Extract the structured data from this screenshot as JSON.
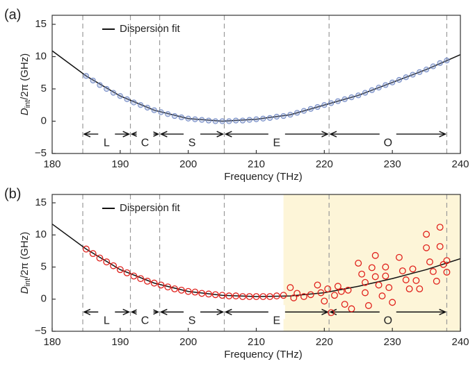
{
  "chart_data": [
    {
      "type": "scatter",
      "panel_label": "(a)",
      "x_label": "Frequency (THz)",
      "y_label": {
        "main": "D",
        "sub": "int",
        "rest": "/2π (GHz)"
      },
      "xlim": [
        180,
        240
      ],
      "xticks": [
        180,
        190,
        200,
        210,
        220,
        230,
        240
      ],
      "ylim": [
        -5,
        16.4
      ],
      "yticks": [
        {
          "value": -5,
          "label": "−5"
        },
        0,
        5,
        10,
        15
      ],
      "fit": {
        "name": "Dispersion fit",
        "color": "#111111",
        "x": [
          180,
          185,
          190,
          195,
          200,
          205,
          210,
          215,
          220,
          225,
          230,
          235,
          240
        ],
        "values": [
          10.9,
          7.0,
          3.9,
          1.7,
          0.4,
          0.0,
          0.3,
          1.0,
          2.5,
          4.0,
          6.0,
          8.0,
          10.3
        ]
      },
      "points": {
        "color": "#6f87c4",
        "x": [
          185,
          186,
          187,
          188,
          189,
          190,
          191,
          192,
          193,
          194,
          195,
          196,
          197,
          198,
          199,
          200,
          201,
          202,
          203,
          204,
          205,
          206,
          207,
          208,
          209,
          210,
          211,
          212,
          213,
          214,
          215,
          216,
          217,
          218,
          219,
          220,
          221,
          222,
          223,
          224,
          225,
          226,
          227,
          228,
          229,
          230,
          231,
          232,
          233,
          234,
          235,
          236,
          237,
          238
        ],
        "values": [
          7.0,
          6.3,
          5.6,
          5.0,
          4.4,
          3.9,
          3.4,
          2.9,
          2.5,
          2.1,
          1.7,
          1.4,
          1.1,
          0.8,
          0.6,
          0.4,
          0.3,
          0.2,
          0.1,
          0.0,
          0.0,
          0.0,
          0.1,
          0.1,
          0.2,
          0.3,
          0.4,
          0.5,
          0.7,
          0.8,
          1.0,
          1.3,
          1.6,
          1.9,
          2.2,
          2.5,
          2.8,
          3.1,
          3.4,
          3.7,
          4.0,
          4.4,
          4.8,
          5.2,
          5.6,
          6.0,
          6.4,
          6.8,
          7.2,
          7.6,
          8.0,
          8.5,
          9.0,
          9.4
        ]
      },
      "bands": [
        {
          "label": "L",
          "start": 184.5,
          "end": 191.5
        },
        {
          "label": "C",
          "start": 191.5,
          "end": 195.8
        },
        {
          "label": "S",
          "start": 195.8,
          "end": 205.3
        },
        {
          "label": "E",
          "start": 205.3,
          "end": 220.7
        },
        {
          "label": "O",
          "start": 220.7,
          "end": 238
        }
      ]
    },
    {
      "type": "scatter",
      "panel_label": "(b)",
      "x_label": "Frequency (THz)",
      "y_label": {
        "main": "D",
        "sub": "int",
        "rest": "/2π (GHz)"
      },
      "xlim": [
        180,
        240
      ],
      "xticks": [
        180,
        190,
        200,
        210,
        220,
        230,
        240
      ],
      "ylim": [
        -5,
        16.3
      ],
      "yticks": [
        {
          "value": -5,
          "label": "−5"
        },
        0,
        5,
        10,
        15
      ],
      "highlight": [
        214,
        240
      ],
      "fit": {
        "name": "Dispersion fit",
        "color": "#111111",
        "x": [
          180,
          185,
          190,
          195,
          200,
          205,
          210,
          215,
          220,
          225,
          230,
          235,
          240
        ],
        "values": [
          11.7,
          7.8,
          4.6,
          2.5,
          1.2,
          0.6,
          0.4,
          0.5,
          1.0,
          2.0,
          3.2,
          4.6,
          6.3
        ]
      },
      "points": {
        "color": "#e0201b",
        "x": [
          185,
          186,
          187,
          188,
          189,
          190,
          191,
          192,
          193,
          194,
          195,
          196,
          197,
          198,
          199,
          200,
          201,
          202,
          203,
          204,
          205,
          206,
          207,
          208,
          209,
          210,
          211,
          212,
          213,
          214,
          215,
          215.5,
          216,
          217,
          218,
          219,
          219.5,
          220,
          220.5,
          221,
          221.5,
          222,
          222.5,
          223,
          223.5,
          224,
          225,
          225.5,
          226,
          226,
          226.5,
          227,
          227.5,
          227.5,
          228,
          228.5,
          229,
          229,
          229.5,
          230,
          231,
          231.5,
          232,
          232.5,
          233,
          233.5,
          234,
          235,
          235,
          235.5,
          236,
          236.5,
          237,
          237,
          237.5,
          238,
          238
        ],
        "values": [
          7.8,
          7.1,
          6.4,
          5.8,
          5.2,
          4.6,
          4.1,
          3.6,
          3.2,
          2.8,
          2.5,
          2.2,
          1.9,
          1.6,
          1.4,
          1.2,
          1.1,
          0.9,
          0.8,
          0.7,
          0.6,
          0.5,
          0.5,
          0.4,
          0.4,
          0.4,
          0.4,
          0.4,
          0.5,
          0.6,
          1.8,
          0.2,
          0.9,
          0.4,
          0.7,
          2.2,
          1.0,
          -0.3,
          1.6,
          -2.1,
          0.6,
          2.0,
          1.2,
          -0.8,
          1.4,
          -1.5,
          5.6,
          3.9,
          2.6,
          1.0,
          -1.0,
          4.9,
          3.5,
          6.8,
          2.2,
          0.5,
          5.0,
          3.6,
          1.8,
          -0.5,
          6.5,
          4.4,
          3.0,
          1.6,
          4.7,
          2.9,
          1.6,
          10.1,
          8.0,
          5.8,
          4.3,
          2.8,
          11.2,
          8.2,
          5.4,
          6.0,
          4.2
        ]
      },
      "bands": [
        {
          "label": "L",
          "start": 184.5,
          "end": 191.5
        },
        {
          "label": "C",
          "start": 191.5,
          "end": 195.8
        },
        {
          "label": "S",
          "start": 195.8,
          "end": 205.3
        },
        {
          "label": "E",
          "start": 205.3,
          "end": 220.7
        },
        {
          "label": "O",
          "start": 220.7,
          "end": 238
        }
      ]
    }
  ]
}
